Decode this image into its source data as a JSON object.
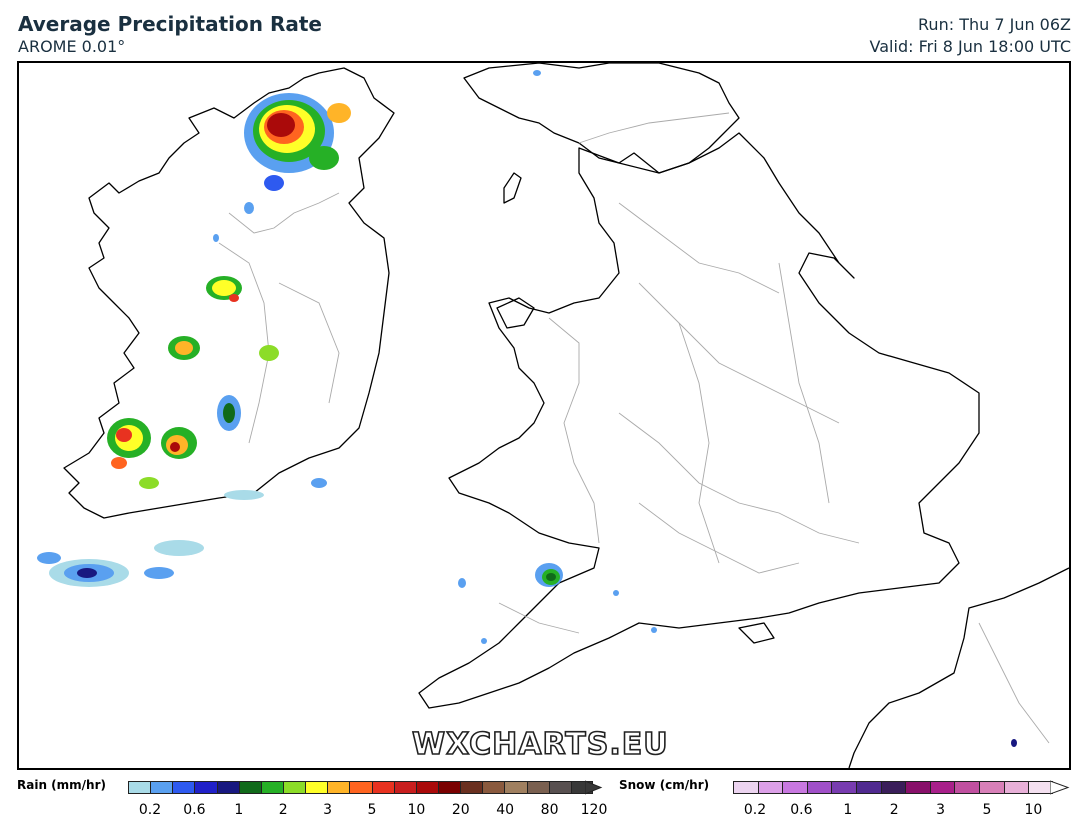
{
  "header": {
    "title": "Average Precipitation Rate",
    "subtitle": "AROME 0.01°",
    "run": "Run: Thu 7 Jun 06Z",
    "valid": "Valid: Fri 8 Jun 18:00 UTC"
  },
  "watermark": "WXCHARTS.EU",
  "legend": {
    "rain_label": "Rain (mm/hr)",
    "snow_label": "Snow (cm/hr)",
    "rain_colors": [
      "#a9dbe8",
      "#5aa0f0",
      "#2e5af0",
      "#2020c8",
      "#181880",
      "#106a1a",
      "#26b026",
      "#8cdc28",
      "#ffff28",
      "#ffb428",
      "#ff6420",
      "#e83220",
      "#c81e1e",
      "#aa0a0a",
      "#7a0000",
      "#6a3020",
      "#8a5a3e",
      "#a08060",
      "#7a6050",
      "#585050",
      "#383838"
    ],
    "rain_ticks": [
      "0.2",
      "0.6",
      "1",
      "2",
      "3",
      "5",
      "10",
      "20",
      "40",
      "80",
      "120"
    ],
    "snow_colors": [
      "#ecd4f0",
      "#dca0e8",
      "#c878e0",
      "#a050c8",
      "#783cb0",
      "#502a90",
      "#3a1e5a",
      "#88106a",
      "#a8208a",
      "#c050a0",
      "#d880b8",
      "#e8b0d8",
      "#f4e0f0"
    ],
    "snow_ticks": [
      "0.2",
      "0.6",
      "1",
      "2",
      "3",
      "5",
      "10"
    ]
  }
}
